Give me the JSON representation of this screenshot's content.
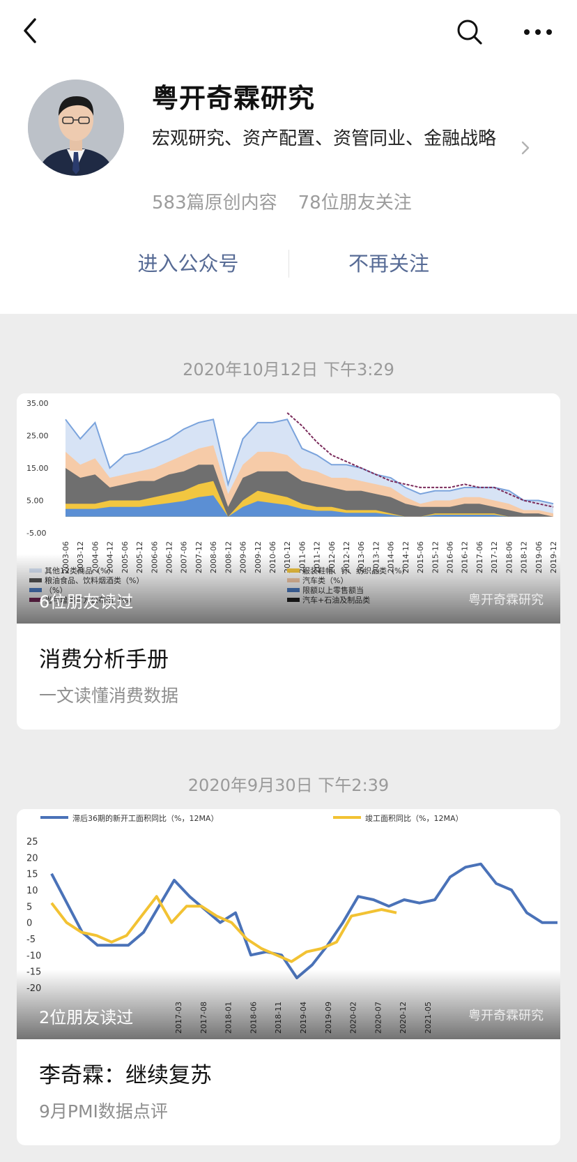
{
  "account": {
    "name": "粤开奇霖研究",
    "description": "宏观研究、资产配置、资管同业、金融战略",
    "original_count": "583篇原创内容",
    "friends_following": "78位朋友关注"
  },
  "actions": {
    "enter": "进入公众号",
    "unfollow": "不再关注"
  },
  "colors": {
    "link": "#576b95",
    "blue_series": "#4a72b8",
    "yellow_series": "#f2c233"
  },
  "icons": [
    "chevron-left-icon",
    "search-icon",
    "more-icon",
    "chevron-right-icon"
  ],
  "posts": [
    {
      "date": "2020年10月12日 下午3:29",
      "friends_read": "6位朋友读过",
      "watermark": "粤开奇霖研究",
      "title": "消费分析手册",
      "subtitle": "一文读懂消费数据"
    },
    {
      "date": "2020年9月30日 下午2:39",
      "friends_read": "2位朋友读过",
      "watermark": "粤开奇霖研究",
      "title": "李奇霖：继续复苏",
      "subtitle": "9月PMI数据点评"
    }
  ],
  "chart_data": [
    {
      "type": "area",
      "ylim": [
        -5,
        35
      ],
      "yticks": [
        "35.00",
        "25.00",
        "15.00",
        "5.00",
        "-5.00"
      ],
      "x": [
        "2003-06",
        "2003-12",
        "2004-06",
        "2004-12",
        "2005-06",
        "2005-12",
        "2006-06",
        "2006-12",
        "2007-06",
        "2007-12",
        "2008-06",
        "2008-12",
        "2009-06",
        "2009-12",
        "2010-06",
        "2010-12",
        "2011-06",
        "2011-12",
        "2012-06",
        "2012-12",
        "2013-06",
        "2013-12",
        "2014-06",
        "2014-12",
        "2015-06",
        "2015-12",
        "2016-06",
        "2016-12",
        "2017-06",
        "2017-12",
        "2018-06",
        "2018-12",
        "2019-06",
        "2019-12"
      ],
      "series": [
        {
          "name": "其他12类商品（%）",
          "values": [
            30,
            24,
            29,
            15,
            19,
            20,
            22,
            24,
            27,
            29,
            30,
            10,
            24,
            29,
            29,
            30,
            21,
            19,
            16,
            16,
            15,
            13,
            12,
            9,
            7,
            8,
            8,
            9,
            9,
            9,
            8,
            5,
            5,
            4
          ]
        },
        {
          "name": "汽车类（%）",
          "values": [
            20,
            16,
            18,
            12,
            13,
            14,
            15,
            17,
            19,
            21,
            22,
            7,
            16,
            20,
            20,
            19,
            15,
            14,
            12,
            12,
            11,
            10,
            9,
            6,
            4,
            5,
            5,
            6,
            6,
            5,
            4,
            2,
            2,
            1
          ]
        },
        {
          "name": "粮油食品、饮料烟酒类（%）",
          "values": [
            15,
            12,
            13,
            9,
            10,
            11,
            11,
            13,
            14,
            16,
            16,
            3,
            12,
            14,
            14,
            14,
            11,
            10,
            9,
            8,
            8,
            7,
            6,
            4,
            3,
            3,
            3,
            4,
            4,
            3,
            2,
            1,
            1,
            0
          ]
        },
        {
          "name": "服装鞋帽、针、纺织品类（%）",
          "values": [
            4,
            4,
            4,
            5,
            5,
            5,
            6,
            7,
            8,
            10,
            11,
            0,
            5,
            8,
            7,
            6,
            4,
            3,
            3,
            2,
            2,
            2,
            1,
            0,
            0,
            1,
            1,
            1,
            1,
            1,
            0,
            0,
            0,
            0
          ]
        },
        {
          "name": "限额以上零售额当月增速官方公布值（%）",
          "values": [
            null,
            null,
            null,
            null,
            null,
            null,
            null,
            null,
            null,
            null,
            null,
            null,
            null,
            null,
            null,
            32,
            28,
            23,
            19,
            17,
            15,
            13,
            11,
            10,
            9,
            9,
            9,
            10,
            9,
            9,
            7,
            5,
            4,
            3
          ]
        }
      ],
      "legend_labels": [
        "其他12类商品（%）",
        "粮油食品、饮料烟酒类（%）",
        "（%）",
        "当月增速官方公布值（%）",
        "服装鞋帽、针、纺织品类（%）",
        "汽车类（%）",
        "限额以上零售额当",
        "汽车+石油及制品类"
      ]
    },
    {
      "type": "line",
      "ylim": [
        -20,
        25
      ],
      "yticks": [
        "25",
        "20",
        "15",
        "10",
        "5",
        "0",
        "-5",
        "-10",
        "-15",
        "-20"
      ],
      "xticks": [
        "2017-03",
        "2017-08",
        "2018-01",
        "2018-06",
        "2018-11",
        "2019-04",
        "2019-09",
        "2020-02",
        "2020-07",
        "2020-12",
        "2021-05"
      ],
      "series": [
        {
          "name": "滞后36期的新开工面积同比（%，12MA）",
          "values": [
            15,
            6,
            -3,
            -7,
            -7,
            -7,
            -3,
            5,
            13,
            8,
            4,
            0,
            3,
            -10,
            -9,
            -10,
            -17,
            -13,
            -7,
            0,
            8,
            7,
            5,
            7,
            6,
            7,
            14,
            17,
            18,
            12,
            10,
            3,
            0,
            0
          ]
        },
        {
          "name": "竣工面积同比（%，12MA）",
          "values": [
            6,
            0,
            -3,
            -4,
            -6,
            -4,
            2,
            8,
            0,
            5,
            5,
            2,
            0,
            -5,
            -8,
            -10,
            -12,
            -9,
            -8,
            -6,
            2,
            3,
            4,
            3
          ]
        }
      ]
    }
  ]
}
